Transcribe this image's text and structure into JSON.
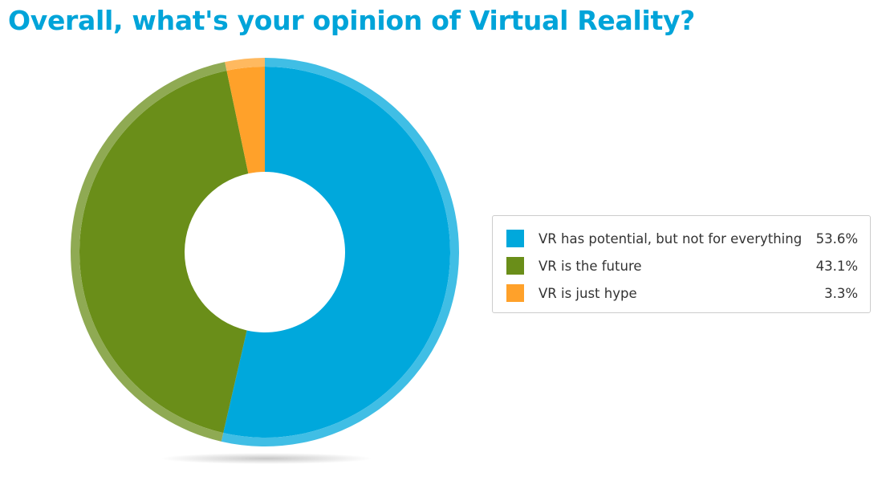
{
  "chart_data": {
    "type": "pie",
    "title": "Overall, what's your opinion of Virtual Reality?",
    "categories": [
      "VR has potential, but not for everything",
      "VR is the future",
      "VR is just hype"
    ],
    "values": [
      53.6,
      43.1,
      3.3
    ],
    "value_labels": [
      "53.6%",
      "43.1%",
      "3.3%"
    ],
    "colors": [
      "#00a8dc",
      "#6a8e19",
      "#ffa12a"
    ],
    "donut": true,
    "legend_position": "right"
  },
  "title_color": "#00a4d9"
}
